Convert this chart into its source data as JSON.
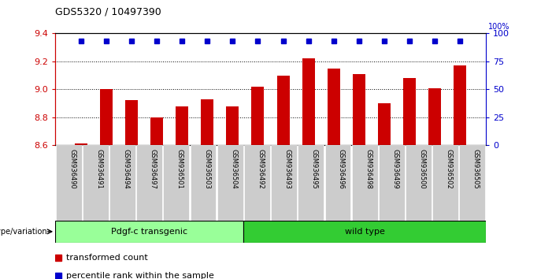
{
  "title": "GDS5320 / 10497390",
  "samples": [
    "GSM936490",
    "GSM936491",
    "GSM936494",
    "GSM936497",
    "GSM936501",
    "GSM936503",
    "GSM936504",
    "GSM936492",
    "GSM936493",
    "GSM936495",
    "GSM936496",
    "GSM936498",
    "GSM936499",
    "GSM936500",
    "GSM936502",
    "GSM936505"
  ],
  "bar_values": [
    8.61,
    9.0,
    8.92,
    8.8,
    8.88,
    8.93,
    8.88,
    9.02,
    9.1,
    9.22,
    9.15,
    9.11,
    8.9,
    9.08,
    9.01,
    9.17
  ],
  "percentile_values": [
    93,
    93,
    93,
    93,
    93,
    93,
    93,
    93,
    93,
    93,
    93,
    93,
    93,
    93,
    93,
    93
  ],
  "bar_color": "#cc0000",
  "percentile_color": "#0000cc",
  "ylim_left": [
    8.6,
    9.4
  ],
  "ylim_right": [
    0,
    100
  ],
  "yticks_left": [
    8.6,
    8.8,
    9.0,
    9.2,
    9.4
  ],
  "yticks_right": [
    0,
    25,
    50,
    75,
    100
  ],
  "group1_label": "Pdgf-c transgenic",
  "group2_label": "wild type",
  "group1_count": 7,
  "group2_count": 9,
  "genotype_label": "genotype/variation",
  "legend_bar": "transformed count",
  "legend_pct": "percentile rank within the sample",
  "group1_color": "#99ff99",
  "group2_color": "#33cc33",
  "background_color": "#ffffff",
  "tick_bg_color": "#cccccc"
}
